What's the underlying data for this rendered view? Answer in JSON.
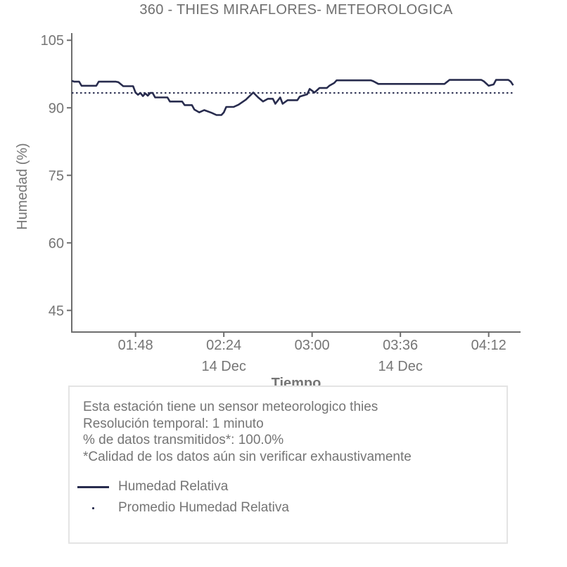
{
  "title": "360 - THIES MIRAFLORES- METEOROLOGICA",
  "colors": {
    "series_line": "#282c4e",
    "average_line": "#282c4e",
    "text_gray": "#757575",
    "axis": "#6e6e6e",
    "box_border": "#e4e4e4",
    "background": "#ffffff"
  },
  "chart_data": {
    "type": "line",
    "title": "360 - THIES MIRAFLORES- METEOROLOGICA",
    "xlabel": "Tiempo",
    "ylabel": "Humedad (%)",
    "x_type": "time",
    "grid": false,
    "legend_position": "bottom-box",
    "xlim": [
      "01:22",
      "04:25"
    ],
    "ylim": [
      40.2,
      106.6
    ],
    "y_ticks": [
      105,
      90,
      75,
      60,
      45
    ],
    "x_ticks": [
      {
        "time": "01:48",
        "label": "01:48"
      },
      {
        "time": "02:24",
        "label": "02:24"
      },
      {
        "time": "03:00",
        "label": "03:00"
      },
      {
        "time": "03:36",
        "label": "03:36"
      },
      {
        "time": "04:12",
        "label": "04:12"
      }
    ],
    "x_date_labels": [
      {
        "time": "02:24",
        "label": "14 Dec"
      },
      {
        "time": "03:36",
        "label": "14 Dec"
      }
    ],
    "series": [
      {
        "name": "Humedad Relativa",
        "type": "line",
        "color": "#282c4e",
        "points": [
          [
            "01:22",
            96.0
          ],
          [
            "01:23",
            95.8
          ],
          [
            "01:25",
            95.8
          ],
          [
            "01:26",
            94.9
          ],
          [
            "01:32",
            94.9
          ],
          [
            "01:33",
            95.8
          ],
          [
            "01:40",
            95.8
          ],
          [
            "01:41",
            95.7
          ],
          [
            "01:43",
            94.8
          ],
          [
            "01:47",
            94.8
          ],
          [
            "01:48",
            93.4
          ],
          [
            "01:49",
            92.9
          ],
          [
            "01:50",
            93.3
          ],
          [
            "01:51",
            92.6
          ],
          [
            "01:52",
            93.2
          ],
          [
            "01:53",
            92.7
          ],
          [
            "01:54",
            93.3
          ],
          [
            "01:55",
            93.3
          ],
          [
            "01:56",
            92.3
          ],
          [
            "02:01",
            92.3
          ],
          [
            "02:02",
            91.4
          ],
          [
            "02:07",
            91.4
          ],
          [
            "02:08",
            90.6
          ],
          [
            "02:11",
            90.6
          ],
          [
            "02:12",
            89.6
          ],
          [
            "02:14",
            89.0
          ],
          [
            "02:16",
            89.5
          ],
          [
            "02:19",
            88.9
          ],
          [
            "02:21",
            88.4
          ],
          [
            "02:23",
            88.4
          ],
          [
            "02:24",
            89.0
          ],
          [
            "02:25",
            90.2
          ],
          [
            "02:28",
            90.2
          ],
          [
            "02:30",
            90.7
          ],
          [
            "02:33",
            91.8
          ],
          [
            "02:36",
            93.4
          ],
          [
            "02:38",
            92.3
          ],
          [
            "02:40",
            91.4
          ],
          [
            "02:42",
            92.0
          ],
          [
            "02:44",
            92.0
          ],
          [
            "02:45",
            90.9
          ],
          [
            "02:47",
            92.3
          ],
          [
            "02:48",
            90.9
          ],
          [
            "02:50",
            91.7
          ],
          [
            "02:54",
            91.7
          ],
          [
            "02:55",
            92.5
          ],
          [
            "02:58",
            93.0
          ],
          [
            "02:59",
            94.2
          ],
          [
            "03:01",
            93.4
          ],
          [
            "03:03",
            94.4
          ],
          [
            "03:06",
            94.4
          ],
          [
            "03:07",
            94.9
          ],
          [
            "03:09",
            95.5
          ],
          [
            "03:10",
            96.1
          ],
          [
            "03:24",
            96.1
          ],
          [
            "03:25",
            95.9
          ],
          [
            "03:27",
            95.3
          ],
          [
            "03:54",
            95.3
          ],
          [
            "03:56",
            96.2
          ],
          [
            "04:09",
            96.2
          ],
          [
            "04:10",
            95.9
          ],
          [
            "04:12",
            94.9
          ],
          [
            "04:14",
            95.2
          ],
          [
            "04:15",
            96.2
          ],
          [
            "04:20",
            96.2
          ],
          [
            "04:21",
            95.8
          ],
          [
            "04:22",
            95.0
          ]
        ]
      },
      {
        "name": "Promedio Humedad Relativa",
        "type": "dotted-hline",
        "color": "#282c4e",
        "value": 93.3,
        "span": [
          "01:22",
          "04:22"
        ]
      }
    ]
  },
  "info_box": {
    "lines": [
      "Esta estación tiene un sensor meteorologico thies",
      "Resolución temporal: 1 minuto",
      "% de datos transmitidos*: 100.0%",
      "*Calidad de los datos aún sin verificar exhaustivamente"
    ],
    "legend": [
      {
        "swatch": "solid-line",
        "label": "Humedad Relativa"
      },
      {
        "swatch": "dot",
        "label": "Promedio Humedad Relativa"
      }
    ]
  }
}
